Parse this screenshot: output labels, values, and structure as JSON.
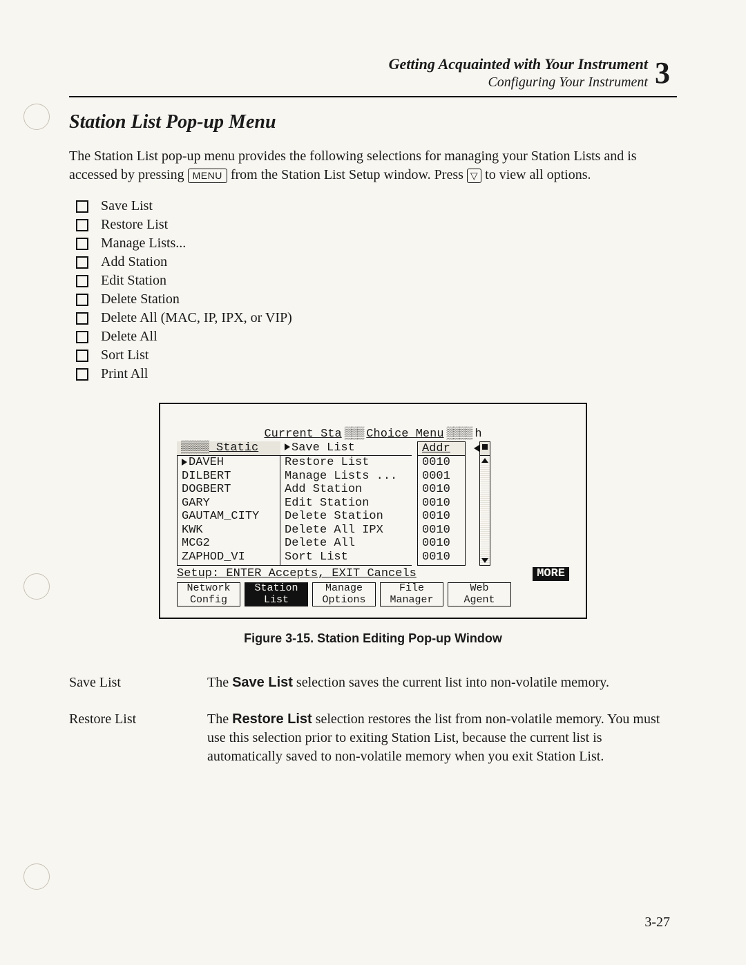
{
  "header": {
    "title": "Getting Acquainted with Your Instrument",
    "subtitle": "Configuring Your Instrument",
    "chapter_number": "3"
  },
  "section_title": "Station List Pop-up Menu",
  "intro": {
    "part1": "The Station List pop-up menu provides the following selections for managing your Station Lists and is accessed by pressing ",
    "key1": "MENU",
    "part2": " from the Station List Setup window.  Press ",
    "key2": "▽",
    "part3": " to view all options."
  },
  "menu_items": [
    "Save List",
    "Restore List",
    "Manage Lists...",
    "Add Station",
    "Edit Station",
    "Delete Station",
    "Delete All (MAC, IP, IPX, or VIP)",
    "Delete All",
    "Sort List",
    "Print All"
  ],
  "screen": {
    "title_left": "Current Sta",
    "title_mid": "Choice Menu",
    "subheader_left": "Static",
    "subheader_addr": "Addr",
    "stations": [
      "DAVEH",
      "DILBERT",
      "DOGBERT",
      "GARY",
      "GAUTAM_CITY",
      "KWK",
      "MCG2",
      "ZAPHOD_VI"
    ],
    "choices": [
      "Save List",
      "Restore List",
      "Manage Lists ...",
      "Add Station",
      "Edit Station",
      "Delete Station",
      "Delete All IPX",
      "Delete All",
      "Sort List"
    ],
    "addrs": [
      "0010",
      "0001",
      "0010",
      "0010",
      "0010",
      "0010",
      "0010",
      "0010"
    ],
    "setup_line": "Setup: ENTER Accepts, EXIT Cancels",
    "more": "MORE",
    "tabs": [
      {
        "l1": "Network",
        "l2": "Config",
        "active": false
      },
      {
        "l1": "Station",
        "l2": "List",
        "active": true
      },
      {
        "l1": "Manage",
        "l2": "Options",
        "active": false
      },
      {
        "l1": "File",
        "l2": "Manager",
        "active": false
      },
      {
        "l1": "Web",
        "l2": "Agent",
        "active": false
      }
    ]
  },
  "figure_caption": "Figure 3-15.  Station Editing Pop-up Window",
  "definitions": [
    {
      "term": "Save List",
      "bold": "Save List",
      "pre": "The ",
      "post": " selection saves the current list into non-volatile memory."
    },
    {
      "term": "Restore List",
      "bold": "Restore List",
      "pre": "The ",
      "post": " selection restores the list from non-volatile memory.  You must use this selection prior to exiting Station List, because the current list is automatically saved to non-volatile memory when you exit Station List."
    }
  ],
  "page_number": "3-27"
}
